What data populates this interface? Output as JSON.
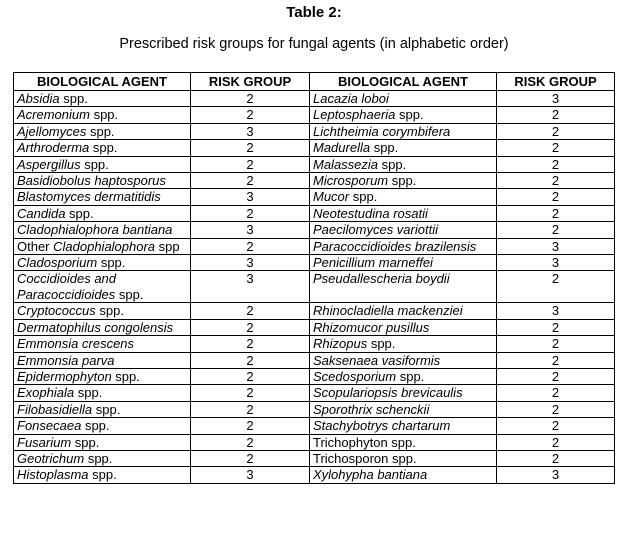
{
  "title": "Table 2:",
  "subtitle": "Prescribed risk groups for fungal agents (in alphabetic order)",
  "headers": {
    "agent_left": "BIOLOGICAL AGENT",
    "risk_left": "RISK GROUP",
    "agent_right": "BIOLOGICAL AGENT",
    "risk_right": "RISK GROUP"
  },
  "rows": [
    {
      "left": {
        "i": "Absidia",
        "n": " spp."
      },
      "lrg": "2",
      "right": {
        "i": "Lacazia loboi",
        "n": ""
      },
      "rrg": "3"
    },
    {
      "left": {
        "i": "Acremonium",
        "n": " spp."
      },
      "lrg": "2",
      "right": {
        "i": "Leptosphaeria",
        "n": " spp."
      },
      "rrg": "2"
    },
    {
      "left": {
        "i": "Ajellomyces",
        "n": " spp."
      },
      "lrg": "3",
      "right": {
        "i": "Lichtheimia corymbifera",
        "n": ""
      },
      "rrg": "2"
    },
    {
      "left": {
        "i": "Arthroderma",
        "n": " spp."
      },
      "lrg": "2",
      "right": {
        "i": "Madurella",
        "n": " spp."
      },
      "rrg": "2"
    },
    {
      "left": {
        "i": "Aspergillus",
        "n": " spp."
      },
      "lrg": "2",
      "right": {
        "i": "Malassezia",
        "n": " spp."
      },
      "rrg": "2"
    },
    {
      "left": {
        "i": "Basidiobolus haptosporus",
        "n": ""
      },
      "lrg": "2",
      "right": {
        "i": "Microsporum",
        "n": " spp."
      },
      "rrg": "2"
    },
    {
      "left": {
        "i": "Blastomyces dermatitidis",
        "n": ""
      },
      "lrg": "3",
      "right": {
        "i": "Mucor",
        "n": " spp."
      },
      "rrg": "2"
    },
    {
      "left": {
        "i": "Candida",
        "n": " spp."
      },
      "lrg": "2",
      "right": {
        "i": "Neotestudina rosatii",
        "n": ""
      },
      "rrg": "2"
    },
    {
      "left": {
        "i": "Cladophialophora bantiana",
        "n": ""
      },
      "lrg": "3",
      "right": {
        "i": "Paecilomyces variottii",
        "n": ""
      },
      "rrg": "2"
    },
    {
      "left": {
        "p": "Other ",
        "i": "Cladophialophora",
        "n": " spp"
      },
      "lrg": "2",
      "right": {
        "i": "Paracoccidioides brazilensis",
        "n": ""
      },
      "rrg": "3"
    },
    {
      "left": {
        "i": "Cladosporium",
        "n": " spp."
      },
      "lrg": "3",
      "right": {
        "i": "Penicillium marneffei",
        "n": ""
      },
      "rrg": "3"
    },
    {
      "left": {
        "i": "Coccidioides and Paracoccidioides",
        "n": " spp."
      },
      "lrg": "3",
      "right": {
        "i": "Pseudallescheria boydii",
        "n": ""
      },
      "rrg": "2"
    },
    {
      "left": {
        "i": "Cryptococcus",
        "n": " spp."
      },
      "lrg": "2",
      "right": {
        "i": "Rhinocladiella mackenziei",
        "n": ""
      },
      "rrg": "3"
    },
    {
      "left": {
        "i": "Dermatophilus congolensis",
        "n": ""
      },
      "lrg": "2",
      "right": {
        "i": "Rhizomucor pusillus",
        "n": ""
      },
      "rrg": "2"
    },
    {
      "left": {
        "i": "Emmonsia crescens",
        "n": ""
      },
      "lrg": "2",
      "right": {
        "i": "Rhizopus",
        "n": " spp."
      },
      "rrg": "2"
    },
    {
      "left": {
        "i": "Emmonsia parva",
        "n": ""
      },
      "lrg": "2",
      "right": {
        "i": "Saksenaea vasiformis",
        "n": ""
      },
      "rrg": "2"
    },
    {
      "left": {
        "i": "Epidermophyton",
        "n": " spp."
      },
      "lrg": "2",
      "right": {
        "i": "Scedosporium",
        "n": " spp."
      },
      "rrg": "2"
    },
    {
      "left": {
        "i": "Exophiala",
        "n": " spp."
      },
      "lrg": "2",
      "right": {
        "i": "Scopulariopsis brevicaulis",
        "n": ""
      },
      "rrg": "2"
    },
    {
      "left": {
        "i": "Filobasidiella",
        "n": " spp."
      },
      "lrg": "2",
      "right": {
        "i": "Sporothrix schenckii",
        "n": ""
      },
      "rrg": "2"
    },
    {
      "left": {
        "i": "Fonsecaea",
        "n": " spp."
      },
      "lrg": "2",
      "right": {
        "i": "Stachybotrys chartarum",
        "n": ""
      },
      "rrg": "2"
    },
    {
      "left": {
        "i": "Fusarium",
        "n": " spp."
      },
      "lrg": "2",
      "right": {
        "p": "Trichophyton spp.",
        "i": "",
        "n": ""
      },
      "rrg": "2"
    },
    {
      "left": {
        "i": "Geotrichum",
        "n": " spp."
      },
      "lrg": "2",
      "right": {
        "p": "Trichosporon spp.",
        "i": "",
        "n": ""
      },
      "rrg": "2"
    },
    {
      "left": {
        "i": "Histoplasma",
        "n": " spp."
      },
      "lrg": "3",
      "right": {
        "i": "Xylohypha bantiana",
        "n": ""
      },
      "rrg": "3"
    }
  ]
}
